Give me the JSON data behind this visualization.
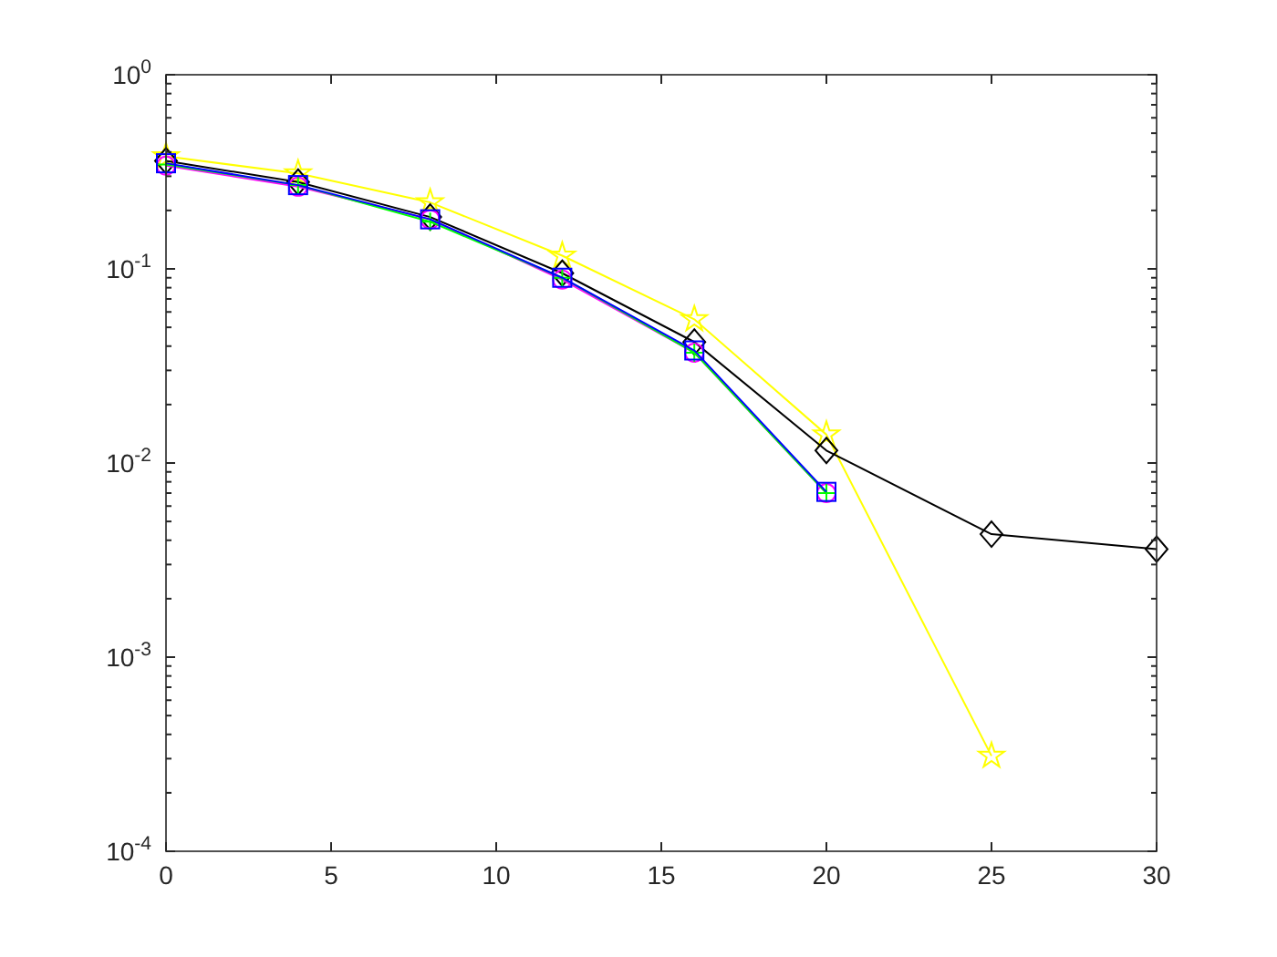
{
  "chart_data": {
    "type": "line",
    "log": "y",
    "x": [
      0,
      4,
      8,
      12,
      16,
      20
    ],
    "xlim": [
      0,
      30
    ],
    "xticks": [
      0,
      5,
      10,
      15,
      20,
      25,
      30
    ],
    "ylim": [
      0.0001,
      1
    ],
    "yticks": [
      {
        "value": 0.0001,
        "label": "10$^{-4}$"
      },
      {
        "value": 0.001,
        "label": "10$^{-3}$"
      },
      {
        "value": 0.01,
        "label": "10$^{-2}$"
      },
      {
        "value": 0.1,
        "label": "10$^{-1}$"
      },
      {
        "value": 1,
        "label": "10$^{0}$"
      }
    ],
    "grid": false,
    "series": [
      {
        "color": "#ffff00",
        "marker": "star",
        "x": [
          0,
          4,
          8,
          12,
          16,
          20,
          25
        ],
        "values": [
          0.38,
          0.31,
          0.22,
          0.117,
          0.055,
          0.014,
          0.00031
        ]
      },
      {
        "color": "#000000",
        "marker": "diamond",
        "x": [
          0,
          4,
          8,
          12,
          16,
          20,
          25,
          30
        ],
        "values": [
          0.36,
          0.28,
          0.185,
          0.095,
          0.042,
          0.0116,
          0.0043,
          0.0036
        ]
      },
      {
        "color": "#ff00ff",
        "marker": "circle",
        "values": [
          0.34,
          0.265,
          0.18,
          0.088,
          0.037,
          0.007
        ]
      },
      {
        "color": "#00ff00",
        "marker": "cross",
        "values": [
          0.345,
          0.27,
          0.175,
          0.09,
          0.037,
          0.007
        ]
      },
      {
        "color": "#0000ff",
        "marker": "square",
        "values": [
          0.35,
          0.27,
          0.18,
          0.09,
          0.038,
          0.0071
        ]
      }
    ]
  }
}
